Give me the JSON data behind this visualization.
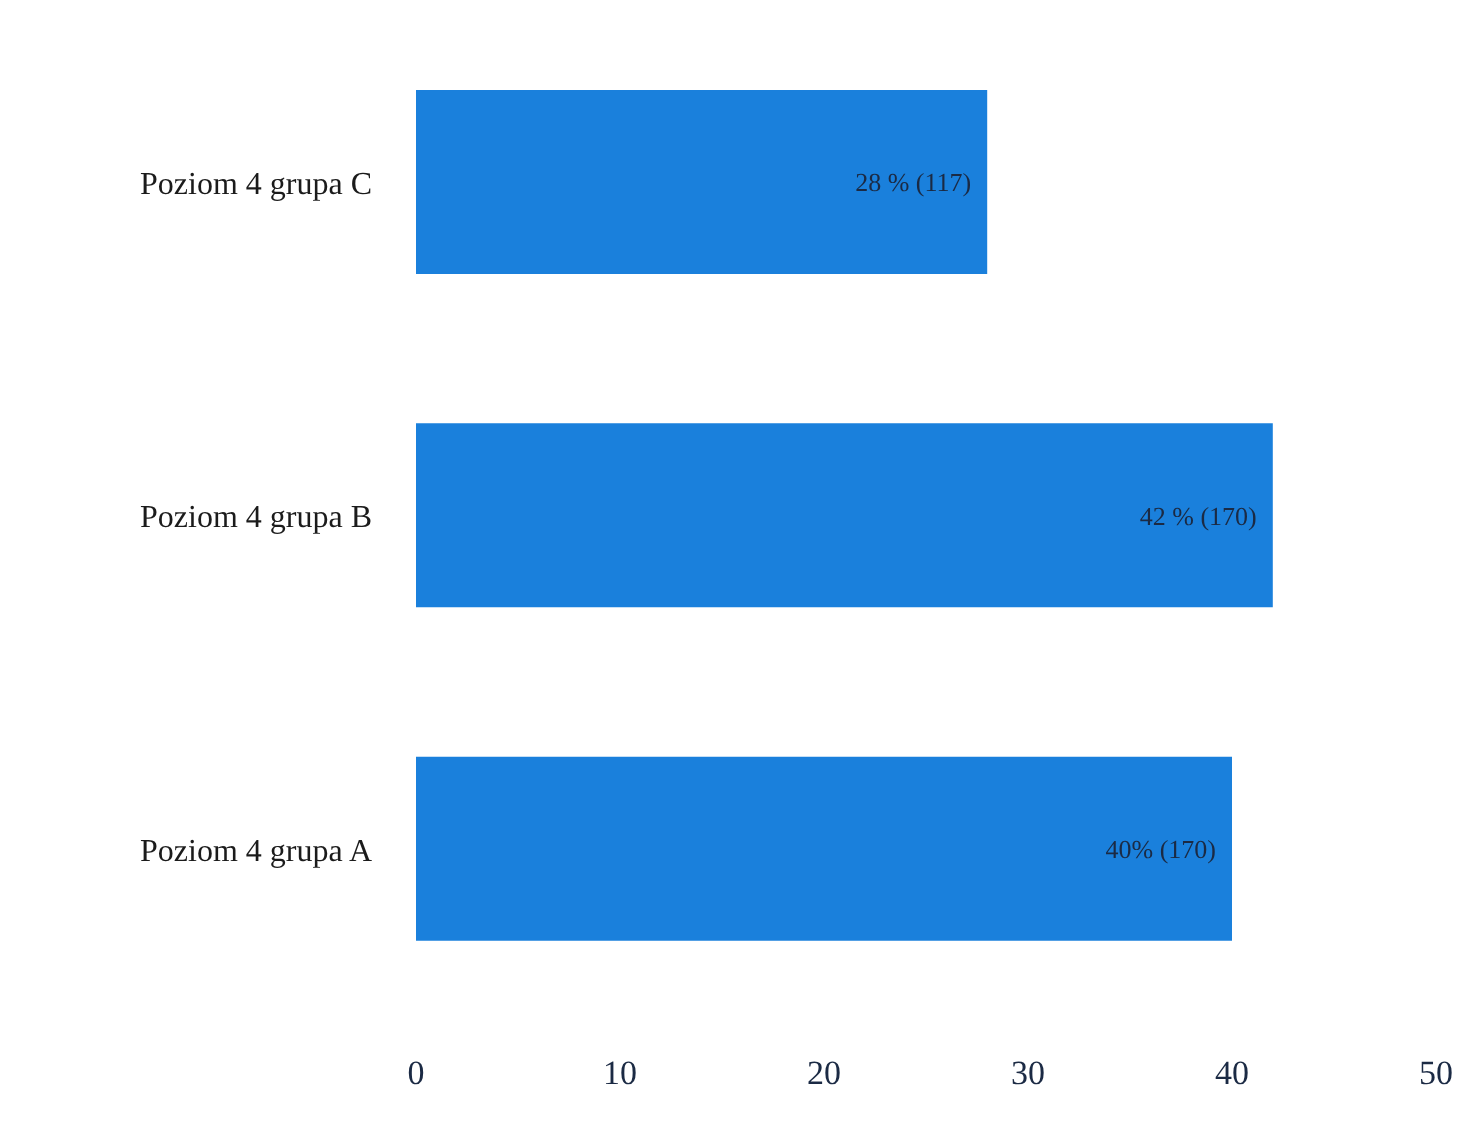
{
  "chart_data": {
    "type": "bar",
    "orientation": "horizontal",
    "categories": [
      "Poziom 4 grupa C",
      "Poziom 4 grupa B",
      "Poziom 4 grupa A"
    ],
    "values": [
      28,
      42,
      40
    ],
    "value_labels": [
      "28 % (117)",
      "42 % (170)",
      "40% (170)"
    ],
    "color": "#1a80dc",
    "xlim": [
      0,
      50
    ],
    "xticks": [
      0,
      10,
      20,
      30,
      40,
      50
    ],
    "grid": false,
    "legend": false
  }
}
